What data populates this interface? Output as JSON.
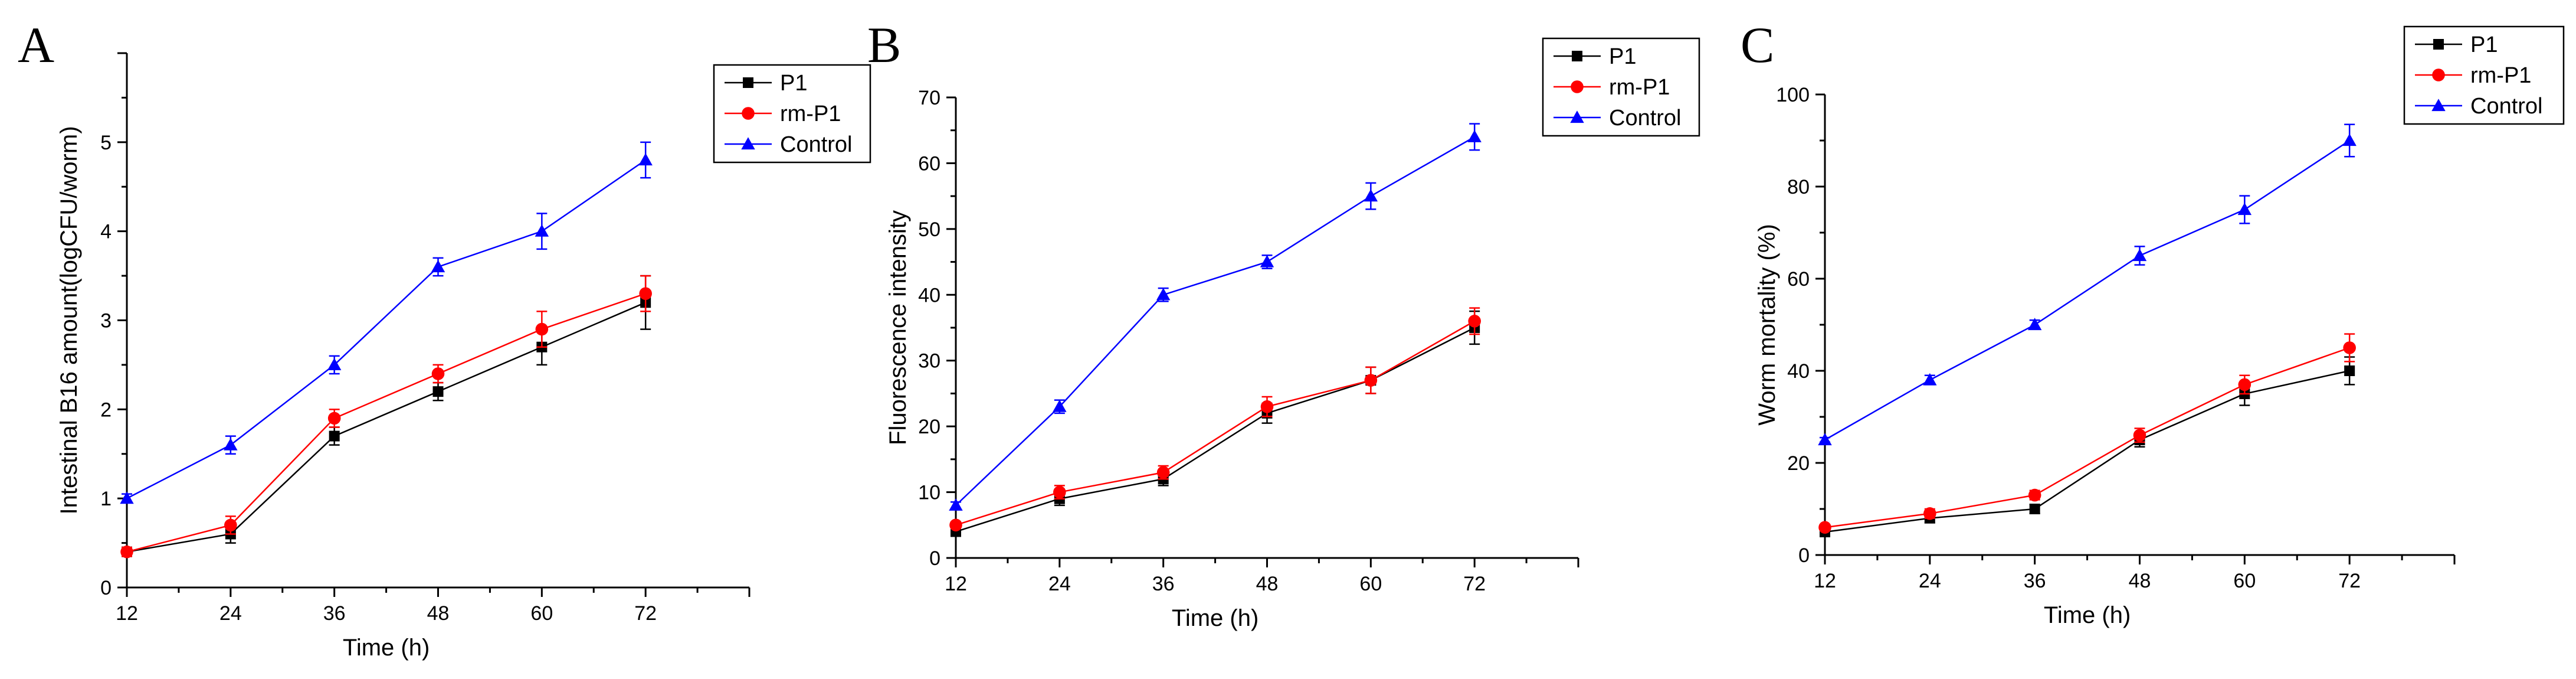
{
  "chart_data": [
    {
      "panel": "A",
      "type": "line",
      "xlabel": "Time (h)",
      "ylabel": "Intestinal B16 amount(logCFU/worm)",
      "x": [
        12,
        24,
        36,
        48,
        60,
        72
      ],
      "xlim": [
        12,
        84
      ],
      "ylim": [
        0,
        6
      ],
      "xticks": [
        "12",
        "24",
        "36",
        "48",
        "60",
        "72"
      ],
      "yticks": [
        "0",
        "1",
        "2",
        "3",
        "4",
        "5"
      ],
      "legend_position": "top-right",
      "series": [
        {
          "name": "P1",
          "marker": "square",
          "color": "#000000",
          "values": [
            0.4,
            0.6,
            1.7,
            2.2,
            2.7,
            3.2
          ],
          "errors": [
            0.05,
            0.1,
            0.1,
            0.1,
            0.2,
            0.3
          ]
        },
        {
          "name": "rm-P1",
          "marker": "circle",
          "color": "#ff0000",
          "values": [
            0.4,
            0.7,
            1.9,
            2.4,
            2.9,
            3.3
          ],
          "errors": [
            0.05,
            0.1,
            0.1,
            0.1,
            0.2,
            0.2
          ]
        },
        {
          "name": "Control",
          "marker": "triangle",
          "color": "#0000ff",
          "values": [
            1.0,
            1.6,
            2.5,
            3.6,
            4.0,
            4.8
          ],
          "errors": [
            0.05,
            0.1,
            0.1,
            0.1,
            0.2,
            0.2
          ]
        }
      ]
    },
    {
      "panel": "B",
      "type": "line",
      "xlabel": "Time (h)",
      "ylabel": "Fluorescence intensity",
      "x": [
        12,
        24,
        36,
        48,
        60,
        72
      ],
      "xlim": [
        12,
        84
      ],
      "ylim": [
        0,
        70
      ],
      "xticks": [
        "12",
        "24",
        "36",
        "48",
        "60",
        "72"
      ],
      "yticks": [
        "0",
        "10",
        "20",
        "30",
        "40",
        "50",
        "60",
        "70"
      ],
      "legend_position": "top-right",
      "series": [
        {
          "name": "P1",
          "marker": "square",
          "color": "#000000",
          "values": [
            4,
            9,
            12,
            22,
            27,
            35
          ],
          "errors": [
            0.5,
            1,
            1,
            1.5,
            2,
            2.5
          ]
        },
        {
          "name": "rm-P1",
          "marker": "circle",
          "color": "#ff0000",
          "values": [
            5,
            10,
            13,
            23,
            27,
            36
          ],
          "errors": [
            0.5,
            1,
            1,
            1.5,
            2,
            2
          ]
        },
        {
          "name": "Control",
          "marker": "triangle",
          "color": "#0000ff",
          "values": [
            8,
            23,
            40,
            45,
            55,
            64
          ],
          "errors": [
            0.5,
            1,
            1,
            1,
            2,
            2
          ]
        }
      ]
    },
    {
      "panel": "C",
      "type": "line",
      "xlabel": "Time (h)",
      "ylabel": "Worm mortality (%)",
      "x": [
        12,
        24,
        36,
        48,
        60,
        72
      ],
      "xlim": [
        12,
        84
      ],
      "ylim": [
        0,
        100
      ],
      "xticks": [
        "12",
        "24",
        "36",
        "48",
        "60",
        "72"
      ],
      "yticks": [
        "0",
        "20",
        "40",
        "60",
        "80",
        "100"
      ],
      "legend_position": "top-right",
      "series": [
        {
          "name": "P1",
          "marker": "square",
          "color": "#000000",
          "values": [
            5,
            8,
            10,
            25,
            35,
            40
          ],
          "errors": [
            0.5,
            1,
            1,
            1.5,
            2.5,
            3
          ]
        },
        {
          "name": "rm-P1",
          "marker": "circle",
          "color": "#ff0000",
          "values": [
            6,
            9,
            13,
            26,
            37,
            45
          ],
          "errors": [
            0.5,
            1,
            1,
            1.5,
            2,
            3
          ]
        },
        {
          "name": "Control",
          "marker": "triangle",
          "color": "#0000ff",
          "values": [
            25,
            38,
            50,
            65,
            75,
            90
          ],
          "errors": [
            0.5,
            1,
            1,
            2,
            3,
            3.5
          ]
        }
      ]
    }
  ]
}
